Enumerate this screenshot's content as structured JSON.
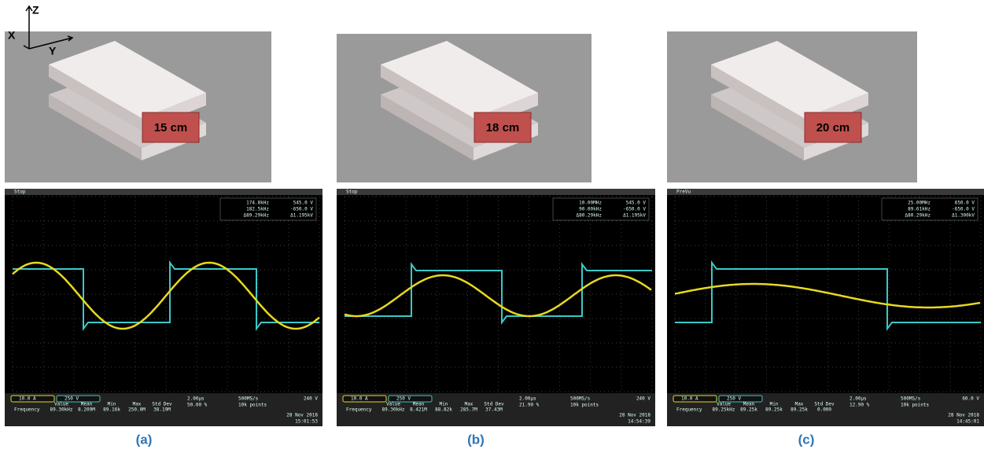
{
  "axes": {
    "x": "X",
    "y": "Y",
    "z": "Z"
  },
  "panels": [
    {
      "distance": "15 cm",
      "caption": "(a)",
      "scope": {
        "status": "Stop",
        "cursors": [
          "174.8kHz",
          "545.0 V",
          "182.5kHz",
          "-650.0 V",
          "Δ89.29kHz",
          "Δ1.195kV"
        ],
        "ch1": "10.0 A",
        "ch2": "250 V",
        "trigger": "240 V",
        "timebase": "2.00μs",
        "trigger_pos": "50.00 %",
        "rate": "500MS/s",
        "points": "10k points",
        "date": "28 Nov 2018",
        "time": "15:01:53",
        "measure_header": [
          "Value",
          "Mean",
          "Min",
          "Max",
          "Std Dev"
        ],
        "measure_label": "Frequency",
        "measure_values": [
          "89.30kHz",
          "8.209M",
          "89.16k",
          "250.0M",
          "38.19M"
        ]
      }
    },
    {
      "distance": "18 cm",
      "caption": "(b)",
      "scope": {
        "status": "Stop",
        "cursors": [
          "10.00MHz",
          "545.0 V",
          "90.00kHz",
          "-650.0 V",
          "Δ80.29kHz",
          "Δ1.195kV"
        ],
        "ch1": "10.0 A",
        "ch2": "250 V",
        "trigger": "240 V",
        "timebase": "2.00μs",
        "trigger_pos": "21.90 %",
        "rate": "500MS/s",
        "points": "10k points",
        "date": "28 Nov 2018",
        "time": "14:54:39",
        "measure_header": [
          "Value",
          "Mean",
          "Min",
          "Max",
          "Std Dev"
        ],
        "measure_label": "Frequency",
        "measure_values": [
          "89.30kHz",
          "8.421M",
          "88.82k",
          "285.7M",
          "37.43M"
        ]
      }
    },
    {
      "distance": "20 cm",
      "caption": "(c)",
      "scope": {
        "status": "PreVu",
        "cursors": [
          "25.00MHz",
          "650.0 V",
          "89.61kHz",
          "-650.0 V",
          "Δ80.29kHz",
          "Δ1.300kV"
        ],
        "ch1": "10.0 A",
        "ch2": "250 V",
        "trigger": "60.0 V",
        "timebase": "2.00μs",
        "trigger_pos": "12.90 %",
        "rate": "500MS/s",
        "points": "10k points",
        "date": "28 Nov 2018",
        "time": "14:45:01",
        "measure_header": [
          "Value",
          "Mean",
          "Min",
          "Max",
          "Std Dev"
        ],
        "measure_label": "Frequency",
        "measure_values": [
          "89.25kHz",
          "89.25k",
          "89.25k",
          "89.25k",
          "0.000"
        ]
      }
    }
  ]
}
